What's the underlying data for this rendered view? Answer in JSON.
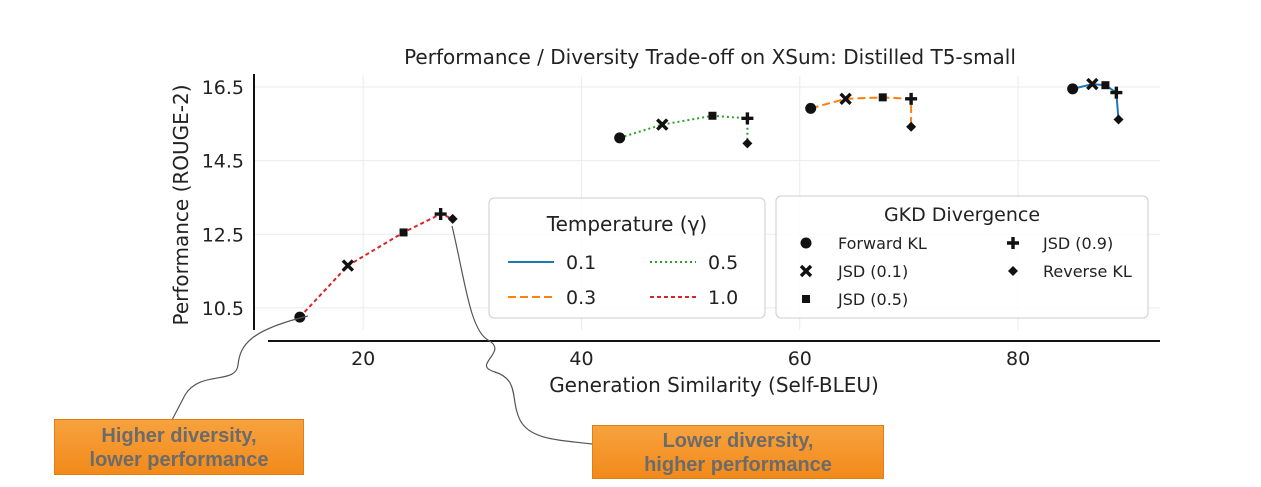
{
  "chart_data": {
    "type": "line",
    "title": "Performance / Diversity Trade-off on XSum: Distilled T5-small",
    "xlabel": "Generation Similarity (Self-BLEU)",
    "ylabel": "Performance (ROUGE-2)",
    "xlim": [
      10,
      93
    ],
    "ylim": [
      9.9,
      16.8
    ],
    "xticks": [
      20,
      40,
      60,
      80
    ],
    "yticks": [
      10.5,
      12.5,
      14.5,
      16.5
    ],
    "xtick_labels": [
      "20",
      "40",
      "60",
      "80"
    ],
    "ytick_labels": [
      "10.5",
      "12.5",
      "14.5",
      "16.5"
    ],
    "grid": true,
    "marker_order": [
      "Forward KL",
      "JSD (0.1)",
      "JSD (0.5)",
      "JSD (0.9)",
      "Reverse KL"
    ],
    "series": [
      {
        "name": "0.1",
        "color": "#1f77b4",
        "dash": "solid",
        "x": [
          85.0,
          86.8,
          88.0,
          89.0,
          89.2
        ],
        "y": [
          16.45,
          16.58,
          16.55,
          16.35,
          15.62
        ]
      },
      {
        "name": "0.3",
        "color": "#ff7f0e",
        "dash": "dashed",
        "x": [
          61.0,
          64.2,
          67.6,
          70.2,
          70.2
        ],
        "y": [
          15.92,
          16.18,
          16.22,
          16.18,
          15.42
        ]
      },
      {
        "name": "0.5",
        "color": "#2ca02c",
        "dash": "dotted",
        "x": [
          43.5,
          47.4,
          52.0,
          55.2,
          55.2
        ],
        "y": [
          15.12,
          15.48,
          15.72,
          15.65,
          14.97
        ]
      },
      {
        "name": "1.0",
        "color": "#d62728",
        "dash": "dashdot",
        "x": [
          14.2,
          18.6,
          23.7,
          27.1,
          28.2
        ],
        "y": [
          10.25,
          11.65,
          12.55,
          13.05,
          12.92
        ]
      }
    ],
    "legend_temperature": {
      "title": "Temperature (γ)",
      "placement": "center",
      "entries": [
        "0.1",
        "0.3",
        "0.5",
        "1.0"
      ]
    },
    "legend_divergence": {
      "title": "GKD Divergence",
      "placement": "center-right",
      "entries": [
        "Forward KL",
        "JSD (0.1)",
        "JSD (0.5)",
        "JSD (0.9)",
        "Reverse KL"
      ]
    }
  },
  "annotations": {
    "higher_diversity": {
      "line1": "Higher diversity,",
      "line2": "lower performance"
    },
    "lower_diversity": {
      "line1": "Lower diversity,",
      "line2": "higher performance"
    }
  }
}
